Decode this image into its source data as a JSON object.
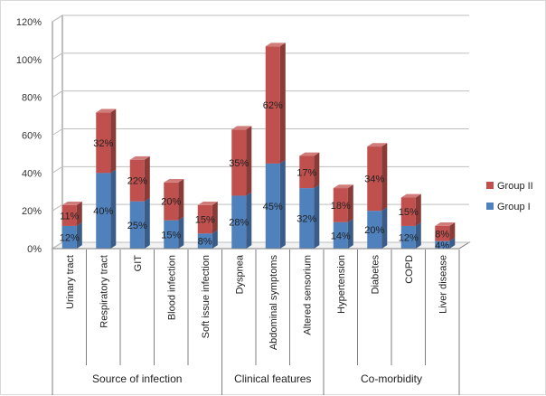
{
  "chart_data": {
    "type": "bar",
    "stacked": true,
    "three_d": true,
    "categories": [
      "Urinary tract",
      "Respiratory tract",
      "GIT",
      "Blood infection",
      "Soft issue infection",
      "Dyspnea",
      "Abdominal symptoms",
      "Altered sensorium",
      "Hypertension",
      "Diabetes",
      "COPD",
      "Liver disease"
    ],
    "category_groups": [
      {
        "label": "Source of infection",
        "categories": [
          "Urinary tract",
          "Respiratory tract",
          "GIT",
          "Blood infection",
          "Soft issue infection"
        ]
      },
      {
        "label": "Clinical features",
        "categories": [
          "Dyspnea",
          "Abdominal symptoms",
          "Altered sensorium"
        ]
      },
      {
        "label": "Co-morbidity",
        "categories": [
          "Hypertension",
          "Diabetes",
          "COPD",
          "Liver disease"
        ]
      }
    ],
    "series": [
      {
        "name": "Group I",
        "values": [
          12,
          40,
          25,
          15,
          8,
          28,
          45,
          32,
          14,
          20,
          12,
          4
        ],
        "labels": [
          "12%",
          "40%",
          "25%",
          "15%",
          "8%",
          "28%",
          "45%",
          "32%",
          "14%",
          "20%",
          "12%",
          "4%"
        ]
      },
      {
        "name": "Group II",
        "values": [
          11,
          32,
          22,
          20,
          15,
          35,
          62,
          17,
          18,
          34,
          15,
          8
        ],
        "labels": [
          "11%",
          "32%",
          "22%",
          "20%",
          "15%",
          "35%",
          "62%",
          "17%",
          "18%",
          "34%",
          "15%",
          "8%"
        ]
      }
    ],
    "yticks": [
      "0%",
      "20%",
      "40%",
      "60%",
      "80%",
      "100%",
      "120%"
    ],
    "ylim": [
      0,
      120
    ],
    "ystep": 20,
    "grid": true,
    "legend_position": "right",
    "legend_order": [
      "Group II",
      "Group I"
    ],
    "title": "",
    "xlabel": "",
    "ylabel": ""
  },
  "colors": {
    "group_i": "#4f81bd",
    "group_ii": "#c0504d",
    "grid": "#bfbfbf",
    "axis": "#7f7f7f"
  }
}
